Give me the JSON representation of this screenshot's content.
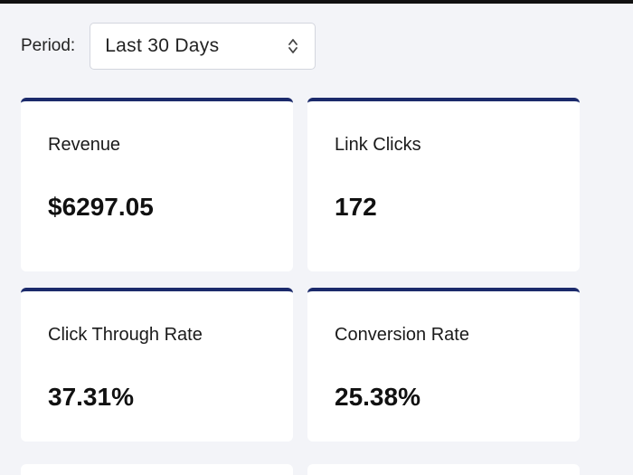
{
  "period": {
    "label": "Period:",
    "selected": "Last 30 Days",
    "icon": "select-updown-icon"
  },
  "metrics": [
    {
      "label": "Revenue",
      "value": "$6297.05"
    },
    {
      "label": "Link Clicks",
      "value": "172"
    },
    {
      "label": "Click Through Rate",
      "value": "37.31%"
    },
    {
      "label": "Conversion Rate",
      "value": "25.38%"
    }
  ],
  "colors": {
    "accent": "#1b2a6b",
    "background": "#f3f4f8",
    "card": "#ffffff"
  }
}
